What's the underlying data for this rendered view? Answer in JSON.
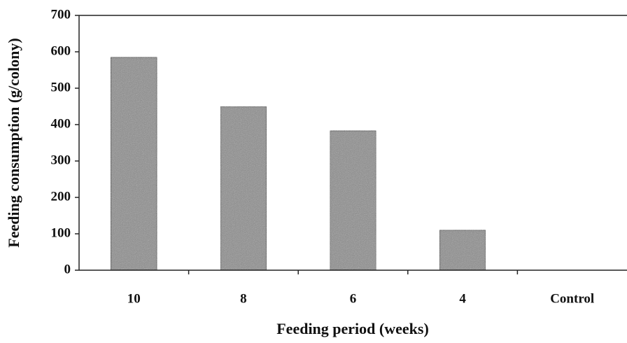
{
  "chart_data": {
    "type": "bar",
    "xlabel": "Feeding period (weeks)",
    "ylabel": "Feeding consumption (g/colony)",
    "categories": [
      "10",
      "8",
      "6",
      "4",
      "Control"
    ],
    "values": [
      585,
      450,
      383,
      110,
      0
    ],
    "color": "#8c8c8c",
    "ylim": [
      0,
      700
    ],
    "yticks": [
      0,
      100,
      200,
      300,
      400,
      500,
      600,
      700
    ],
    "grid": false
  }
}
